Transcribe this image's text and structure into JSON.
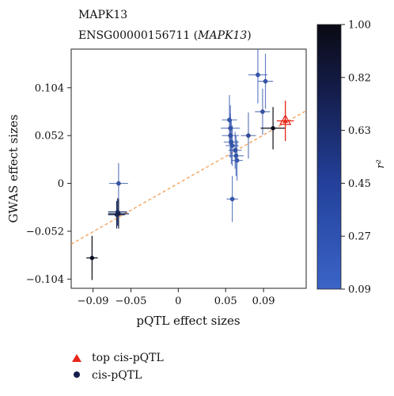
{
  "chart_data": {
    "type": "scatter",
    "title": "MAPK13",
    "subtitle_prefix": "ENSG00000156711 (",
    "subtitle_gene": "MAPK13",
    "subtitle_suffix": ")",
    "xlabel": "pQTL effect sizes",
    "ylabel": "GWAS effect sizes",
    "xlim": [
      -0.113,
      0.135
    ],
    "ylim": [
      -0.114,
      0.146
    ],
    "xticks": [
      {
        "value": -0.09,
        "label": "−0.09"
      },
      {
        "value": -0.05,
        "label": "−0.05"
      },
      {
        "value": 0,
        "label": "0"
      },
      {
        "value": 0.05,
        "label": "0.05"
      },
      {
        "value": 0.09,
        "label": "0.09"
      }
    ],
    "yticks": [
      {
        "value": 0.104,
        "label": "0.104"
      },
      {
        "value": 0.052,
        "label": "0.052"
      },
      {
        "value": 0,
        "label": "0"
      },
      {
        "value": -0.052,
        "label": "−0.052"
      },
      {
        "value": -0.104,
        "label": "−0.104"
      }
    ],
    "fit_line": {
      "x": [
        -0.113,
        0.135
      ],
      "y": [
        -0.066,
        0.079
      ],
      "color": "#f4a460"
    },
    "colorbar": {
      "label": "r²",
      "min": 0.09,
      "max": 1.0,
      "ticks": [
        "1.00",
        "0.82",
        "0.63",
        "0.45",
        "0.27",
        "0.09"
      ],
      "color_low": "#3b64c8",
      "color_high": "#0a0a14"
    },
    "series": [
      {
        "name": "top cis-pQTL",
        "marker": "triangle",
        "color": "#e8261b",
        "points": [
          {
            "x": 0.113,
            "y": 0.068,
            "xerr": 0.009,
            "yerr": 0.022
          }
        ]
      },
      {
        "name": "cis-pQTL",
        "marker": "circle",
        "points": [
          {
            "x": -0.091,
            "y": -0.081,
            "xerr": 0.006,
            "yerr": 0.024,
            "r2": 1.0
          },
          {
            "x": -0.063,
            "y": -0.033,
            "xerr": 0.011,
            "yerr": 0.016,
            "r2": 0.78
          },
          {
            "x": -0.065,
            "y": -0.034,
            "xerr": 0.009,
            "yerr": 0.015,
            "r2": 0.65
          },
          {
            "x": -0.064,
            "y": -0.031,
            "xerr": 0.01,
            "yerr": 0.015,
            "r2": 0.55
          },
          {
            "x": -0.063,
            "y": 0.0,
            "xerr": 0.01,
            "yerr": 0.022,
            "r2": 0.25
          },
          {
            "x": 0.054,
            "y": 0.069,
            "xerr": 0.008,
            "yerr": 0.027,
            "r2": 0.2
          },
          {
            "x": 0.055,
            "y": 0.06,
            "xerr": 0.01,
            "yerr": 0.025,
            "r2": 0.22
          },
          {
            "x": 0.055,
            "y": 0.052,
            "xerr": 0.009,
            "yerr": 0.024,
            "r2": 0.25
          },
          {
            "x": 0.056,
            "y": 0.045,
            "xerr": 0.008,
            "yerr": 0.024,
            "r2": 0.22
          },
          {
            "x": 0.057,
            "y": 0.041,
            "xerr": 0.007,
            "yerr": 0.022,
            "r2": 0.2
          },
          {
            "x": 0.06,
            "y": 0.036,
            "xerr": 0.007,
            "yerr": 0.02,
            "r2": 0.24
          },
          {
            "x": 0.061,
            "y": 0.03,
            "xerr": 0.008,
            "yerr": 0.022,
            "r2": 0.22
          },
          {
            "x": 0.062,
            "y": 0.025,
            "xerr": 0.006,
            "yerr": 0.022,
            "r2": 0.18
          },
          {
            "x": 0.057,
            "y": -0.017,
            "xerr": 0.006,
            "yerr": 0.025,
            "r2": 0.2
          },
          {
            "x": 0.074,
            "y": 0.052,
            "xerr": 0.008,
            "yerr": 0.025,
            "r2": 0.32
          },
          {
            "x": 0.084,
            "y": 0.118,
            "xerr": 0.01,
            "yerr": 0.031,
            "r2": 0.2
          },
          {
            "x": 0.092,
            "y": 0.111,
            "xerr": 0.008,
            "yerr": 0.03,
            "r2": 0.22
          },
          {
            "x": 0.089,
            "y": 0.078,
            "xerr": 0.008,
            "yerr": 0.025,
            "r2": 0.25
          },
          {
            "x": 0.1,
            "y": 0.06,
            "xerr": 0.013,
            "yerr": 0.023,
            "r2": 1.0
          }
        ]
      }
    ]
  }
}
